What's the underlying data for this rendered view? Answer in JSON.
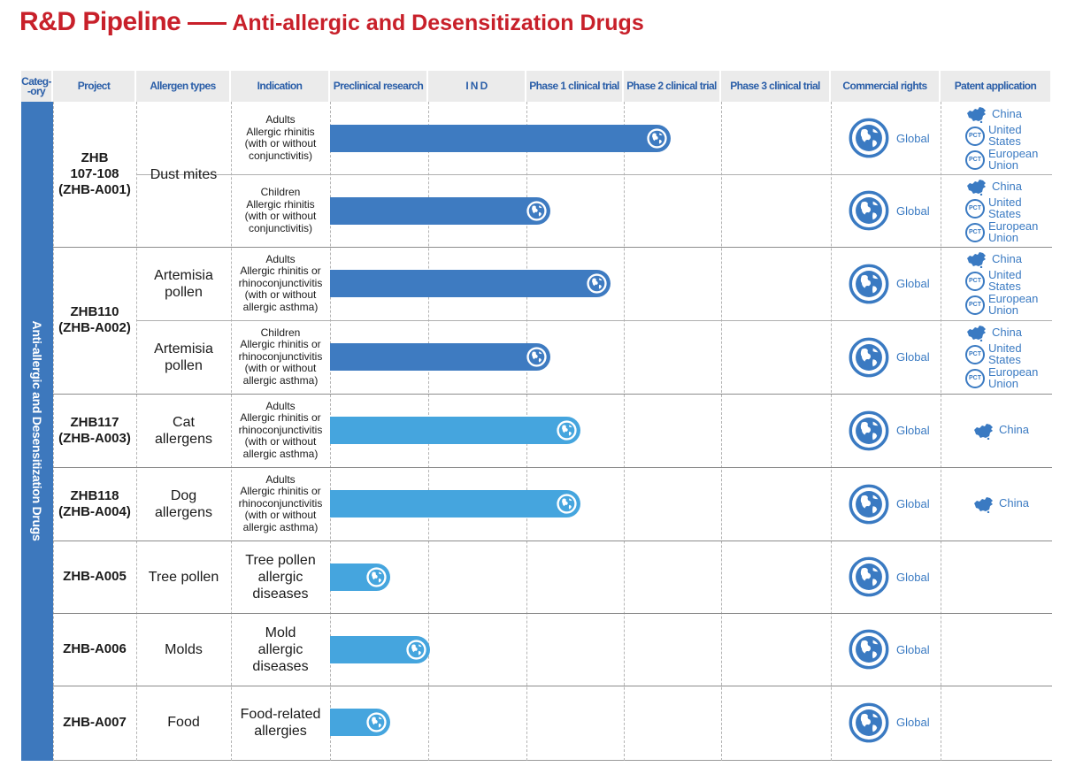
{
  "title": {
    "main": "R&D Pipeline",
    "sub": "Anti-allergic and Desensitization Drugs"
  },
  "category": "Anti-allergic and Desensitization Drugs",
  "headers": [
    "Categ-\n-ory",
    "Project",
    "Allergen types",
    "Indication",
    "Preclinical research",
    "I N D",
    "Phase 1 clinical trial",
    "Phase 2 clinical trial",
    "Phase 3 clinical trial",
    "Commercial rights",
    "Patent application"
  ],
  "projects": [
    {
      "name": "ZHB\n107-108\n(ZHB-A001)",
      "allergen": "Dust mites"
    },
    {
      "name": "ZHB110\n(ZHB-A002)",
      "allergen": ""
    },
    {
      "name": "ZHB117\n(ZHB-A003)",
      "allergen": "Cat\nallergens"
    },
    {
      "name": "ZHB118\n(ZHB-A004)",
      "allergen": "Dog\nallergens"
    },
    {
      "name": "ZHB-A005",
      "allergen": "Tree pollen"
    },
    {
      "name": "ZHB-A006",
      "allergen": "Molds"
    },
    {
      "name": "ZHB-A007",
      "allergen": "Food"
    }
  ],
  "rows": [
    {
      "indication": "Adults\nAllergic rhinitis\n(with or without\nconjunctivitis)",
      "indication_style": "small",
      "allergen": "",
      "progress": "Phase 2 clinical trial",
      "progress_fraction": 0.68,
      "bar_color": "#3e7bc1",
      "rights": "Global",
      "patent": [
        "China",
        "United\nStates",
        "European\nUnion"
      ]
    },
    {
      "indication": "Children\nAllergic rhinitis\n(with or without\nconjunctivitis)",
      "indication_style": "small",
      "allergen": "",
      "progress": "Phase 1 clinical trial",
      "progress_fraction": 0.44,
      "bar_color": "#3e7bc1",
      "rights": "Global",
      "patent": [
        "China",
        "United\nStates",
        "European\nUnion"
      ]
    },
    {
      "indication": "Adults\nAllergic rhinitis or\nrhinoconjunctivitis\n(with or without\nallergic asthma)",
      "indication_style": "small",
      "allergen": "Artemisia\npollen",
      "progress": "Phase 1 clinical trial",
      "progress_fraction": 0.56,
      "bar_color": "#3e7bc1",
      "rights": "Global",
      "patent": [
        "China",
        "United\nStates",
        "European\nUnion"
      ]
    },
    {
      "indication": "Children\nAllergic rhinitis or\nrhinoconjunctivitis\n(with or without\nallergic asthma)",
      "indication_style": "small",
      "allergen": "Artemisia\npollen",
      "progress": "Phase 1 clinical trial",
      "progress_fraction": 0.44,
      "bar_color": "#3e7bc1",
      "rights": "Global",
      "patent": [
        "China",
        "United\nStates",
        "European\nUnion"
      ]
    },
    {
      "indication": "Adults\nAllergic rhinitis or\nrhinoconjunctivitis\n(with or without\nallergic asthma)",
      "indication_style": "small",
      "allergen": "",
      "progress": "Phase 1 clinical trial",
      "progress_fraction": 0.5,
      "bar_color": "#45a5de",
      "rights": "Global",
      "patent": [
        "China"
      ]
    },
    {
      "indication": "Adults\nAllergic rhinitis or\nrhinoconjunctivitis\n(with or without\nallergic asthma)",
      "indication_style": "small",
      "allergen": "",
      "progress": "Phase 1 clinical trial",
      "progress_fraction": 0.5,
      "bar_color": "#45a5de",
      "rights": "Global",
      "patent": [
        "China"
      ]
    },
    {
      "indication": "Tree pollen\nallergic\ndiseases",
      "indication_style": "big",
      "allergen": "",
      "progress": "Preclinical research",
      "progress_fraction": 0.12,
      "bar_color": "#45a5de",
      "rights": "Global",
      "patent": []
    },
    {
      "indication": "Mold\nallergic\ndiseases",
      "indication_style": "big",
      "allergen": "",
      "progress": "Preclinical research",
      "progress_fraction": 0.2,
      "bar_color": "#45a5de",
      "rights": "Global",
      "patent": []
    },
    {
      "indication": "Food-related\nallergies",
      "indication_style": "big",
      "allergen": "",
      "progress": "Preclinical research",
      "progress_fraction": 0.12,
      "bar_color": "#45a5de",
      "rights": "Global",
      "patent": []
    }
  ],
  "icons": {
    "bar_end": "globe-icon",
    "rights": "globe-icon",
    "patent_china": "china-map-icon",
    "patent_pct": "pct-icon"
  },
  "pct_label": "PCT",
  "colors": {
    "title": "#c8202a",
    "header_text": "#2a5ea8",
    "category_band": "#3d78bd",
    "bar_dark": "#3e7bc1",
    "bar_light": "#45a5de",
    "accent_text": "#3a7ac2"
  }
}
